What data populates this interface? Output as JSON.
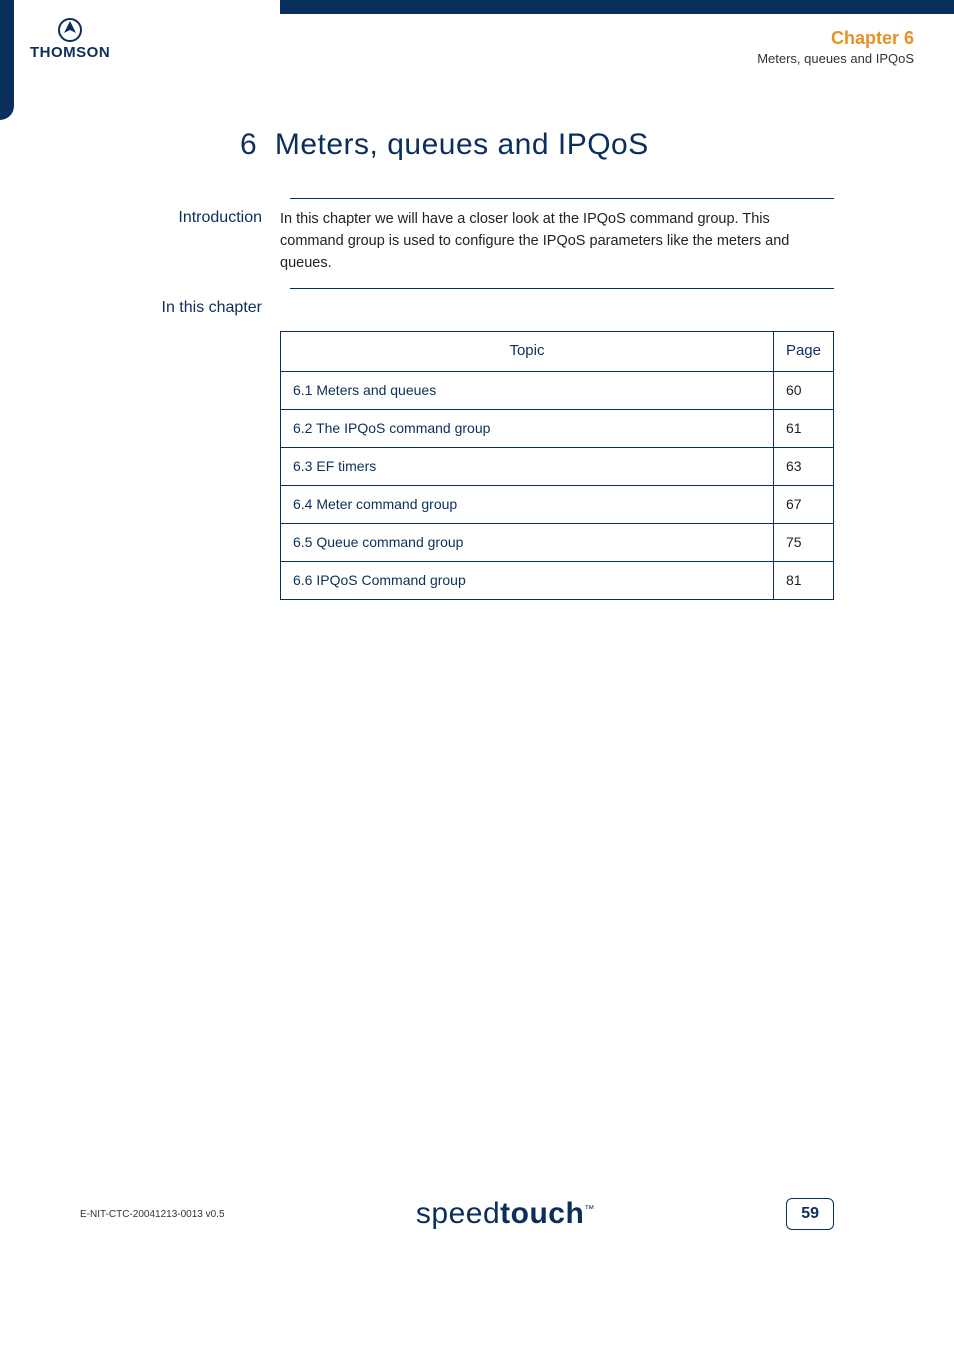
{
  "header": {
    "logo_text": "THOMSON",
    "chapter_label": "Chapter 6",
    "chapter_sub": "Meters, queues and IPQoS"
  },
  "title": {
    "number": "6",
    "text": "Meters, queues and IPQoS"
  },
  "intro": {
    "label": "Introduction",
    "body": "In this chapter we will have a closer look at the IPQoS command group. This command group is used to configure the IPQoS parameters like the meters and queues."
  },
  "inthis": {
    "label": "In this chapter"
  },
  "toc": {
    "columns": [
      "Topic",
      "Page"
    ],
    "rows": [
      {
        "topic": "6.1 Meters and queues",
        "page": "60"
      },
      {
        "topic": "6.2 The IPQoS command group",
        "page": "61"
      },
      {
        "topic": "6.3 EF timers",
        "page": "63"
      },
      {
        "topic": "6.4 Meter command group",
        "page": "67"
      },
      {
        "topic": "6.5 Queue command group",
        "page": "75"
      },
      {
        "topic": "6.6 IPQoS Command group",
        "page": "81"
      }
    ]
  },
  "footer": {
    "doc_id": "E-NIT-CTC-20041213-0013 v0.5",
    "brand_thin": "speed",
    "brand_bold": "touch",
    "brand_tm": "™",
    "page_number": "59"
  },
  "colors": {
    "primary": "#0b2f5c",
    "accent": "#e69122",
    "text": "#333333",
    "background": "#ffffff"
  }
}
